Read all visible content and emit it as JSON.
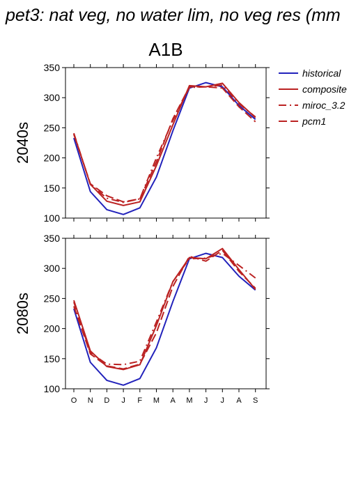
{
  "figure": {
    "title": "pet3: nat veg, no water lim, no veg res (mm",
    "scenario": "A1B",
    "legend": [
      {
        "label": "historical",
        "color": "#2222bb",
        "dash": "solid"
      },
      {
        "label": "composite",
        "color": "#bb2222",
        "dash": "solid"
      },
      {
        "label": "miroc_3.2",
        "color": "#bb2222",
        "dash": "dashdot"
      },
      {
        "label": "pcm1",
        "color": "#bb2222",
        "dash": "dashed"
      }
    ]
  },
  "chart_data": [
    {
      "type": "line",
      "title": "A1B",
      "ylabel": "2040s",
      "categories": [
        "O",
        "N",
        "D",
        "J",
        "F",
        "M",
        "A",
        "M",
        "J",
        "J",
        "A",
        "S"
      ],
      "ylim": [
        100,
        350
      ],
      "yticks": [
        100,
        150,
        200,
        250,
        300,
        350
      ],
      "legend_position": "right",
      "series": [
        {
          "name": "historical",
          "color": "#2222bb",
          "dash": "solid",
          "values": [
            233,
            144,
            114,
            106,
            117,
            168,
            245,
            316,
            325,
            318,
            287,
            264
          ]
        },
        {
          "name": "composite",
          "color": "#bb2222",
          "dash": "solid",
          "values": [
            240,
            156,
            128,
            121,
            127,
            187,
            255,
            320,
            318,
            324,
            292,
            267
          ]
        },
        {
          "name": "miroc_3.2",
          "color": "#bb2222",
          "dash": "dashdot",
          "values": [
            241,
            156,
            133,
            126,
            132,
            200,
            262,
            317,
            318,
            321,
            290,
            268
          ]
        },
        {
          "name": "pcm1",
          "color": "#bb2222",
          "dash": "dashed",
          "values": [
            239,
            157,
            137,
            127,
            132,
            193,
            265,
            318,
            318,
            316,
            285,
            260
          ]
        }
      ]
    },
    {
      "type": "line",
      "title": "",
      "ylabel": "2080s",
      "categories": [
        "O",
        "N",
        "D",
        "J",
        "F",
        "M",
        "A",
        "M",
        "J",
        "J",
        "A",
        "S"
      ],
      "ylim": [
        100,
        350
      ],
      "yticks": [
        100,
        150,
        200,
        250,
        300,
        350
      ],
      "series": [
        {
          "name": "historical",
          "color": "#2222bb",
          "dash": "solid",
          "values": [
            233,
            144,
            114,
            106,
            117,
            168,
            245,
            316,
            325,
            318,
            287,
            264
          ]
        },
        {
          "name": "composite",
          "color": "#bb2222",
          "dash": "solid",
          "values": [
            247,
            163,
            137,
            132,
            140,
            205,
            278,
            318,
            316,
            333,
            298,
            265
          ]
        },
        {
          "name": "miroc_3.2",
          "color": "#bb2222",
          "dash": "dashdot",
          "values": [
            244,
            160,
            141,
            140,
            146,
            211,
            278,
            316,
            317,
            325,
            305,
            284
          ]
        },
        {
          "name": "pcm1",
          "color": "#bb2222",
          "dash": "dashed",
          "values": [
            237,
            158,
            138,
            133,
            141,
            193,
            270,
            320,
            312,
            330,
            295,
            267
          ]
        }
      ]
    }
  ]
}
